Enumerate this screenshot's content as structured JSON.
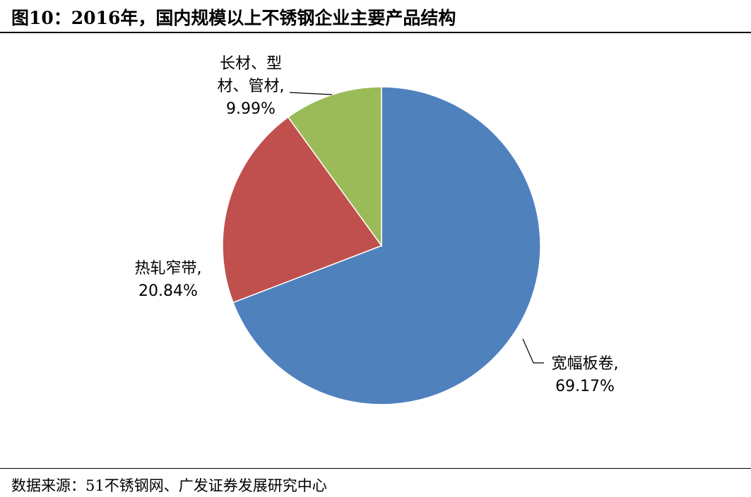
{
  "title": "图10：2016年，国内规模以上不锈钢企业主要产品结构",
  "source": "数据来源：51不锈钢网、广发证券发展研究中心",
  "chart_data": {
    "type": "pie",
    "start_angle_deg": 0,
    "direction": "clockwise",
    "slices": [
      {
        "label_lines": [
          "宽幅板卷,"
        ],
        "value_label": "69.17%",
        "value": 69.17,
        "color": "#4f81bd"
      },
      {
        "label_lines": [
          "热轧窄带,"
        ],
        "value_label": "20.84%",
        "value": 20.84,
        "color": "#c0504d"
      },
      {
        "label_lines": [
          "长材、型",
          "材、管材,"
        ],
        "value_label": "9.99%",
        "value": 9.99,
        "color": "#9bbb59"
      }
    ]
  }
}
